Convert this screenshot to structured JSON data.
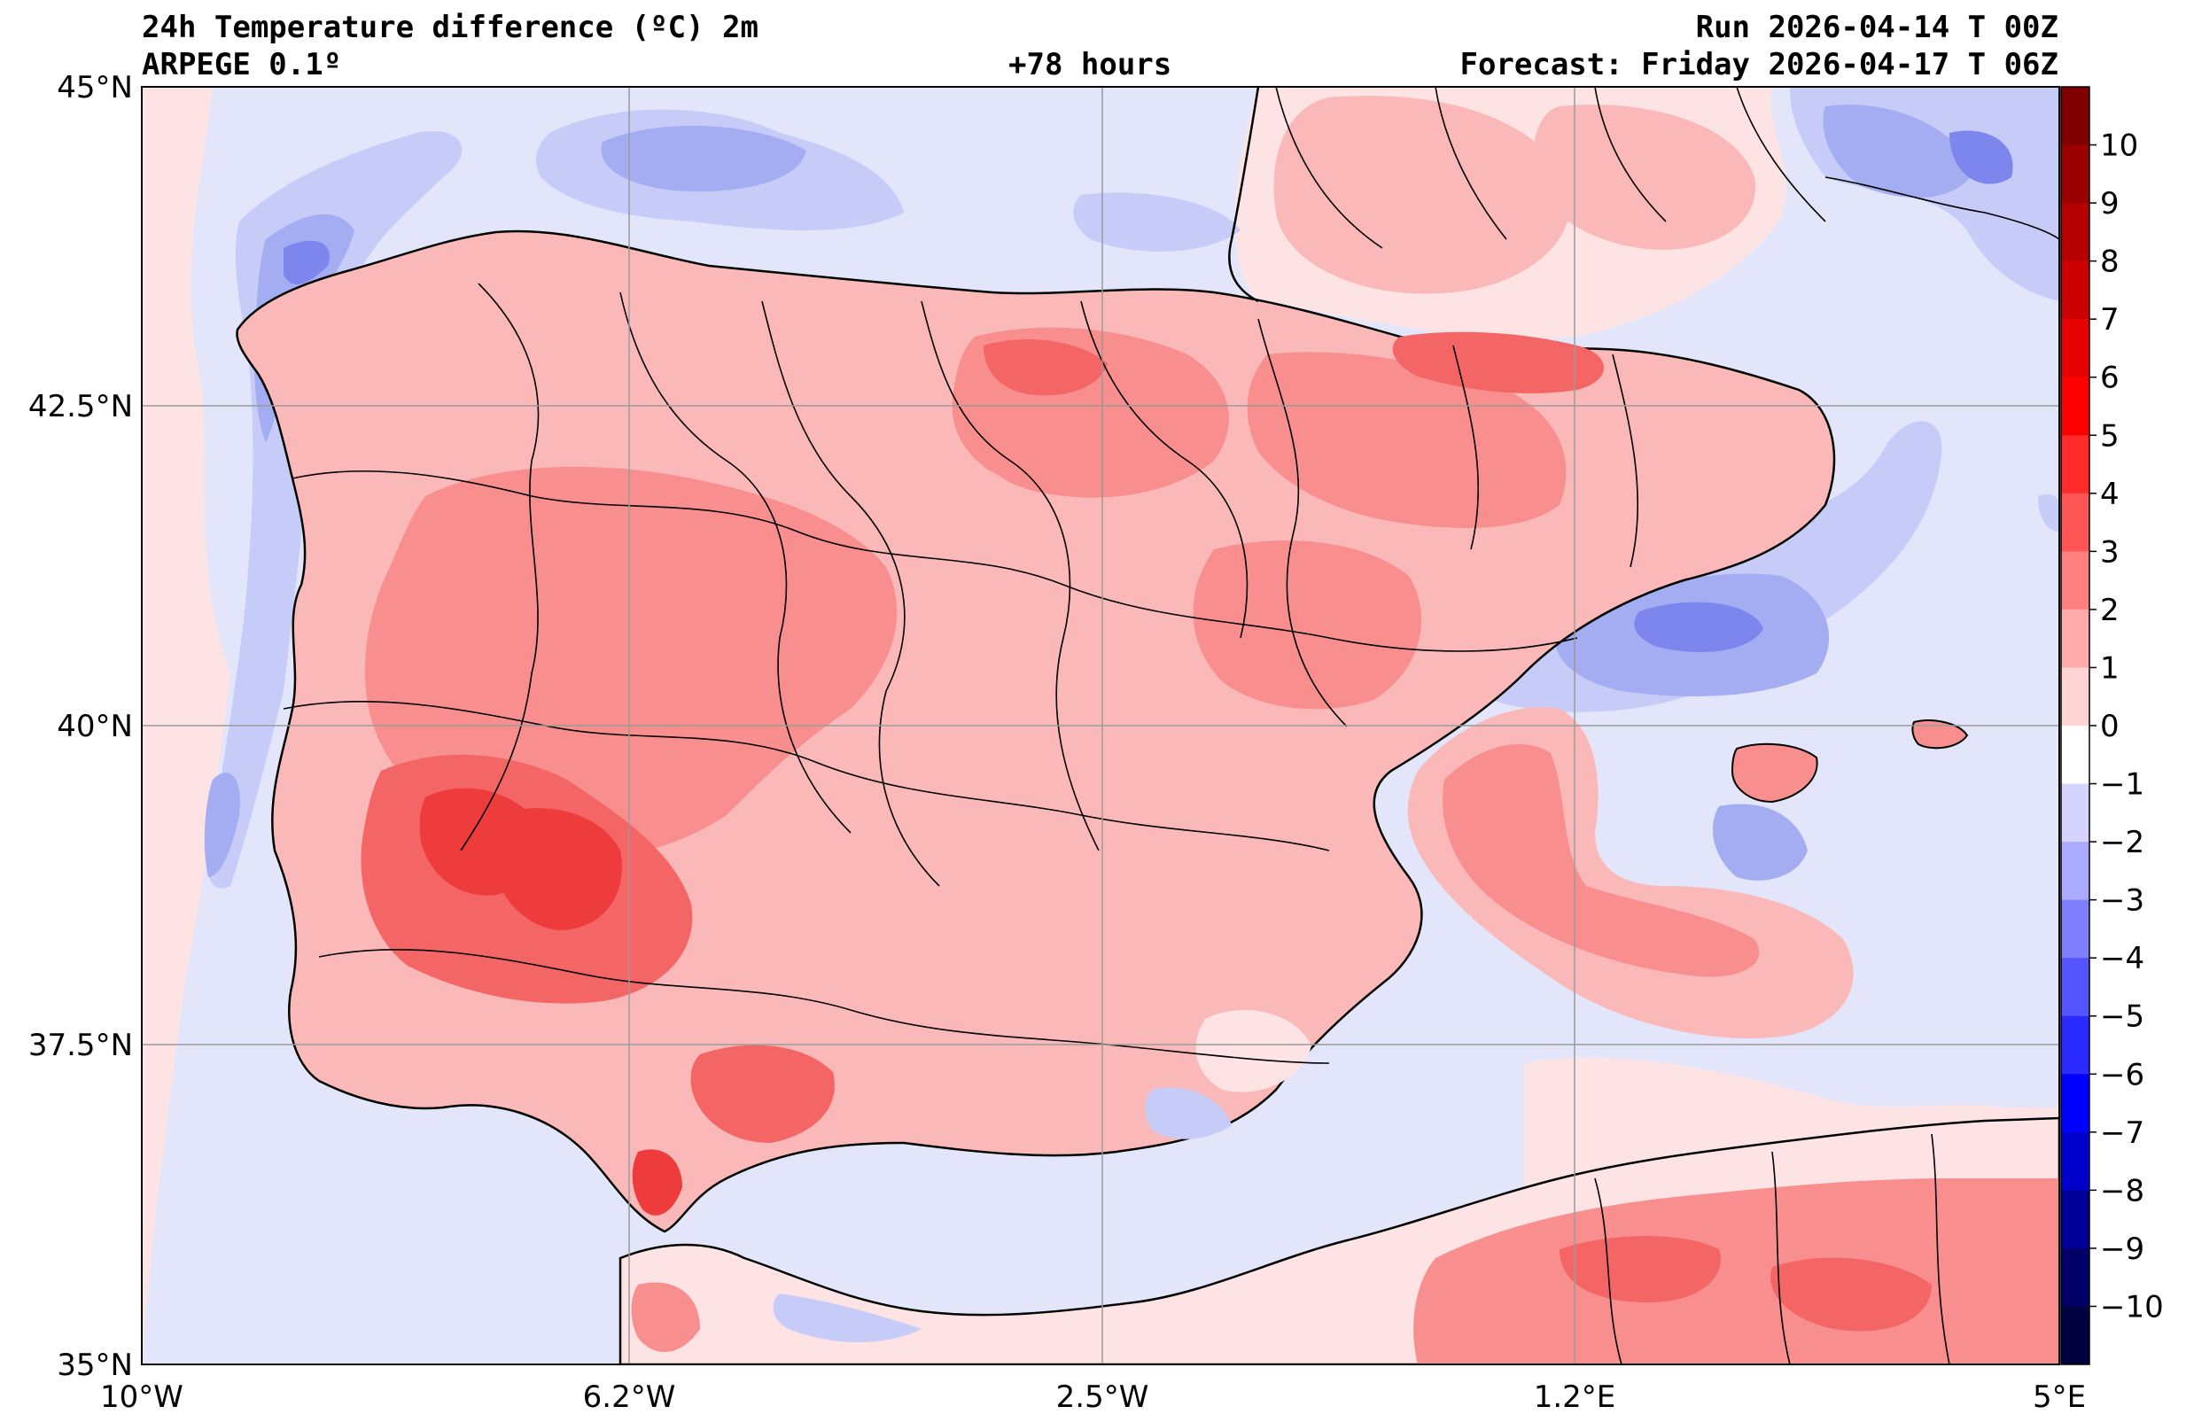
{
  "header": {
    "title": "24h Temperature difference (ºC) 2m",
    "model": "ARPEGE 0.1º",
    "lead_time": "+78 hours",
    "run": "Run 2026-04-14 T 00Z",
    "forecast": "Forecast: Friday 2026-04-17 T 06Z"
  },
  "map": {
    "lat_labels": [
      "45°N",
      "42.5°N",
      "40°N",
      "37.5°N",
      "35°N"
    ],
    "lon_labels": [
      "10°W",
      "6.2°W",
      "2.5°W",
      "1.2°E",
      "5°E"
    ],
    "colors": {
      "sea_neutral": "#e3e6fb",
      "land_neutral": "#fde3e3",
      "warm_1": "#fbb8b8",
      "warm_2": "#f88e8e",
      "warm_3": "#f46565",
      "warm_4": "#ee3c3c",
      "cool_1": "#c6ccf7",
      "cool_2": "#a4acf2",
      "cool_3": "#7d86ec"
    }
  },
  "colorbar": {
    "labels": [
      "10",
      "9",
      "8",
      "7",
      "6",
      "5",
      "4",
      "3",
      "2",
      "1",
      "0",
      "−1",
      "−2",
      "−3",
      "−4",
      "−5",
      "−6",
      "−7",
      "−8",
      "−9",
      "−10"
    ],
    "colors": [
      "#800000",
      "#9a0000",
      "#b40000",
      "#cc0000",
      "#e60000",
      "#ff0000",
      "#ff2a2a",
      "#ff5555",
      "#ff8080",
      "#ffaaaa",
      "#ffd4d4",
      "#ffffff",
      "#d4d4ff",
      "#aaaaff",
      "#8080ff",
      "#5555ff",
      "#2a2aff",
      "#0000ff",
      "#0000cc",
      "#000099",
      "#000066",
      "#000040"
    ]
  }
}
